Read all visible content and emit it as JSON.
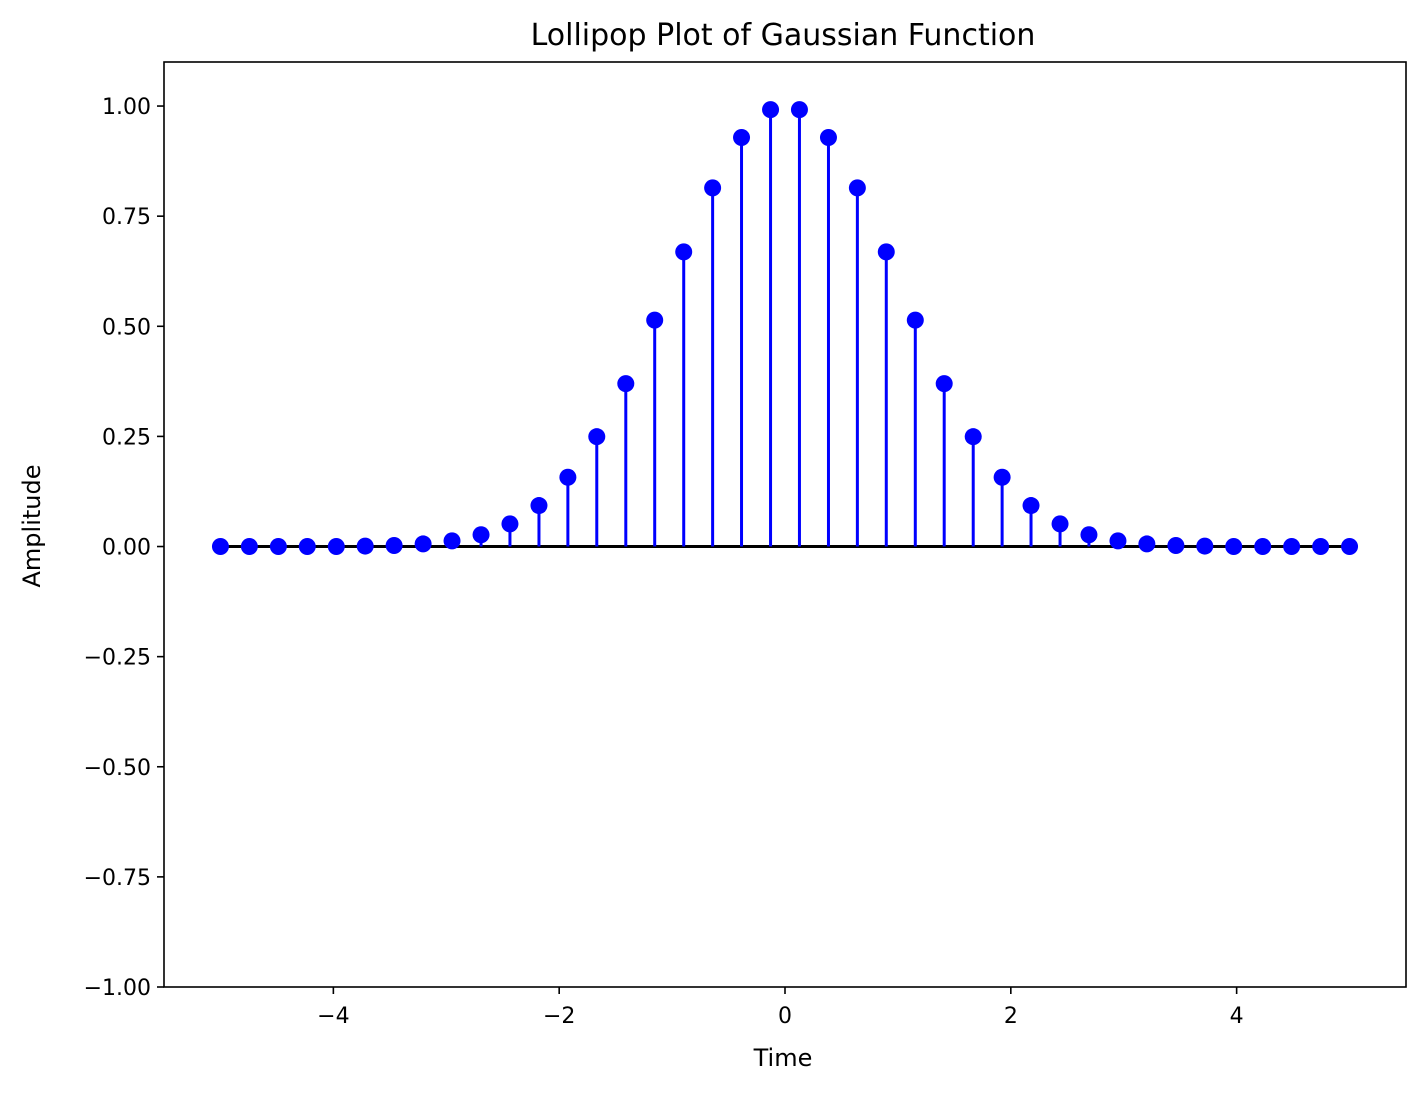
{
  "chart_data": {
    "type": "stem",
    "title": "Lollipop Plot of Gaussian Function",
    "xlabel": "Time",
    "ylabel": "Amplitude",
    "xlim": [
      -5.5,
      5.5
    ],
    "ylim": [
      -1.0,
      1.1
    ],
    "x_ticks": [
      -4,
      -2,
      0,
      2,
      4
    ],
    "x_tick_labels": [
      "−4",
      "−2",
      "0",
      "2",
      "4"
    ],
    "y_ticks": [
      -1.0,
      -0.75,
      -0.5,
      -0.25,
      0.0,
      0.25,
      0.5,
      0.75,
      1.0
    ],
    "y_tick_labels": [
      "−1.00",
      "−0.75",
      "−0.50",
      "−0.25",
      "0.00",
      "0.25",
      "0.50",
      "0.75",
      "1.00"
    ],
    "grid": false,
    "baseline_y": 0,
    "colors": {
      "stem": "#0000ff",
      "marker": "#0000ff",
      "baseline": "#000000"
    },
    "x": [
      -5.0,
      -4.744,
      -4.487,
      -4.231,
      -3.974,
      -3.718,
      -3.462,
      -3.205,
      -2.949,
      -2.692,
      -2.436,
      -2.179,
      -1.923,
      -1.667,
      -1.41,
      -1.154,
      -0.897,
      -0.641,
      -0.385,
      -0.128,
      0.128,
      0.385,
      0.641,
      0.897,
      1.154,
      1.41,
      1.667,
      1.923,
      2.179,
      2.436,
      2.692,
      2.949,
      3.205,
      3.462,
      3.718,
      3.974,
      4.231,
      4.487,
      4.744,
      5.0
    ],
    "y": [
      0.0,
      0.0,
      0.0,
      0.0,
      0.0,
      0.001,
      0.0024,
      0.0059,
      0.0129,
      0.0267,
      0.0514,
      0.093,
      0.1572,
      0.2494,
      0.3698,
      0.5139,
      0.669,
      0.8143,
      0.9286,
      0.9919,
      0.9919,
      0.9286,
      0.8143,
      0.669,
      0.5139,
      0.3698,
      0.2494,
      0.1572,
      0.093,
      0.0514,
      0.0267,
      0.0129,
      0.0059,
      0.0024,
      0.001,
      0.0,
      0.0,
      0.0,
      0.0,
      0.0
    ]
  }
}
